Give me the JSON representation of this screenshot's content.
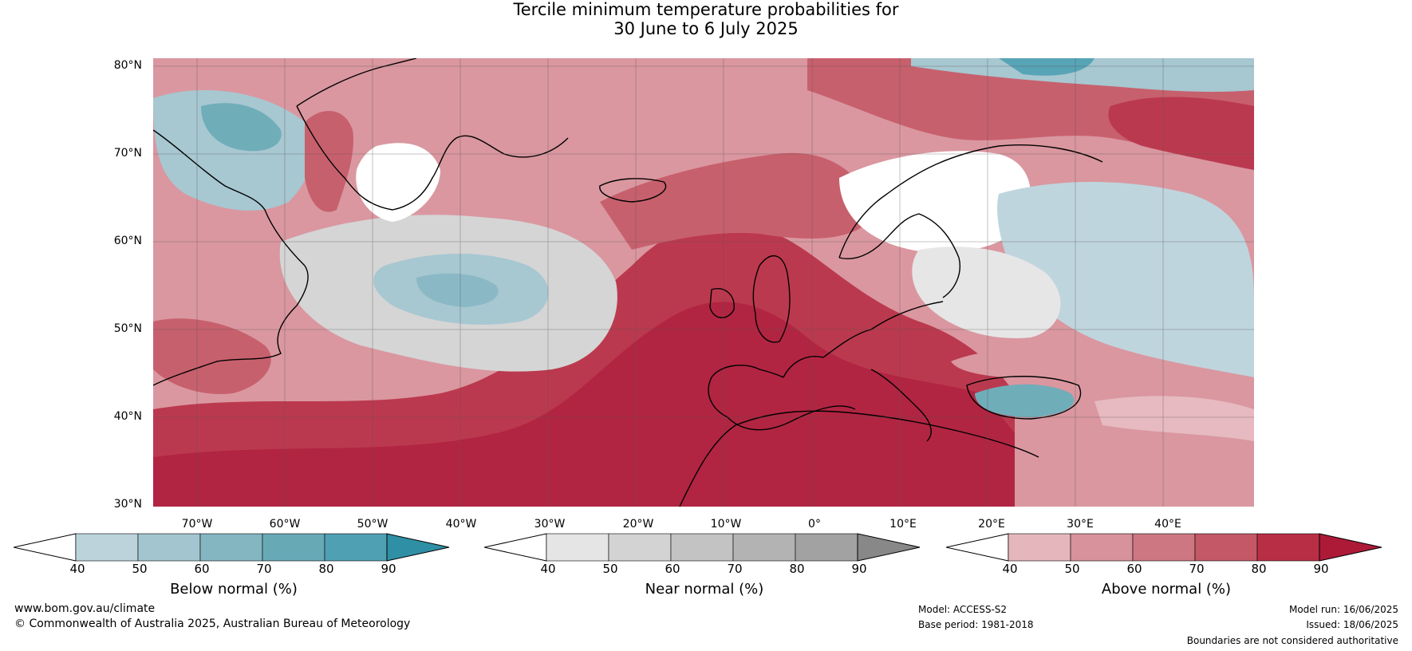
{
  "title_line1": "Tercile minimum temperature probabilities for",
  "title_line2": "30 June to 6 July 2025",
  "lat_labels": [
    "80°N",
    "70°N",
    "60°N",
    "50°N",
    "40°N",
    "30°N"
  ],
  "lon_labels": [
    "70°W",
    "60°W",
    "50°W",
    "40°W",
    "30°W",
    "20°W",
    "10°W",
    "0°",
    "10°E",
    "20°E",
    "30°E",
    "40°E"
  ],
  "colorbars": [
    {
      "title": "Below normal (%)",
      "ticks": [
        "40",
        "50",
        "60",
        "70",
        "80",
        "90"
      ],
      "colors": [
        "#ffffff",
        "#bcd3dc",
        "#a3c5cf",
        "#84b6c2",
        "#68a9b6",
        "#4fa0b3",
        "#2f8fa5"
      ]
    },
    {
      "title": "Near normal (%)",
      "ticks": [
        "40",
        "50",
        "60",
        "70",
        "80",
        "90"
      ],
      "colors": [
        "#ffffff",
        "#e5e5e5",
        "#d3d3d3",
        "#c3c3c3",
        "#b3b3b3",
        "#a2a2a2",
        "#888888"
      ]
    },
    {
      "title": "Above normal (%)",
      "ticks": [
        "40",
        "50",
        "60",
        "70",
        "80",
        "90"
      ],
      "colors": [
        "#ffffff",
        "#e5b7bd",
        "#d8929b",
        "#cd7782",
        "#c45866",
        "#b82f45",
        "#ad1a38"
      ]
    }
  ],
  "footer": {
    "website": "www.bom.gov.au/climate",
    "copyright": "© Commonwealth of Australia 2025, Australian Bureau of Meteorology",
    "model": "Model: ACCESS-S2",
    "base_period": "Base period: 1981-2018",
    "model_run": "Model run: 16/06/2025",
    "issued": "Issued: 18/06/2025",
    "disclaimer": "Boundaries are not considered authoritative"
  }
}
